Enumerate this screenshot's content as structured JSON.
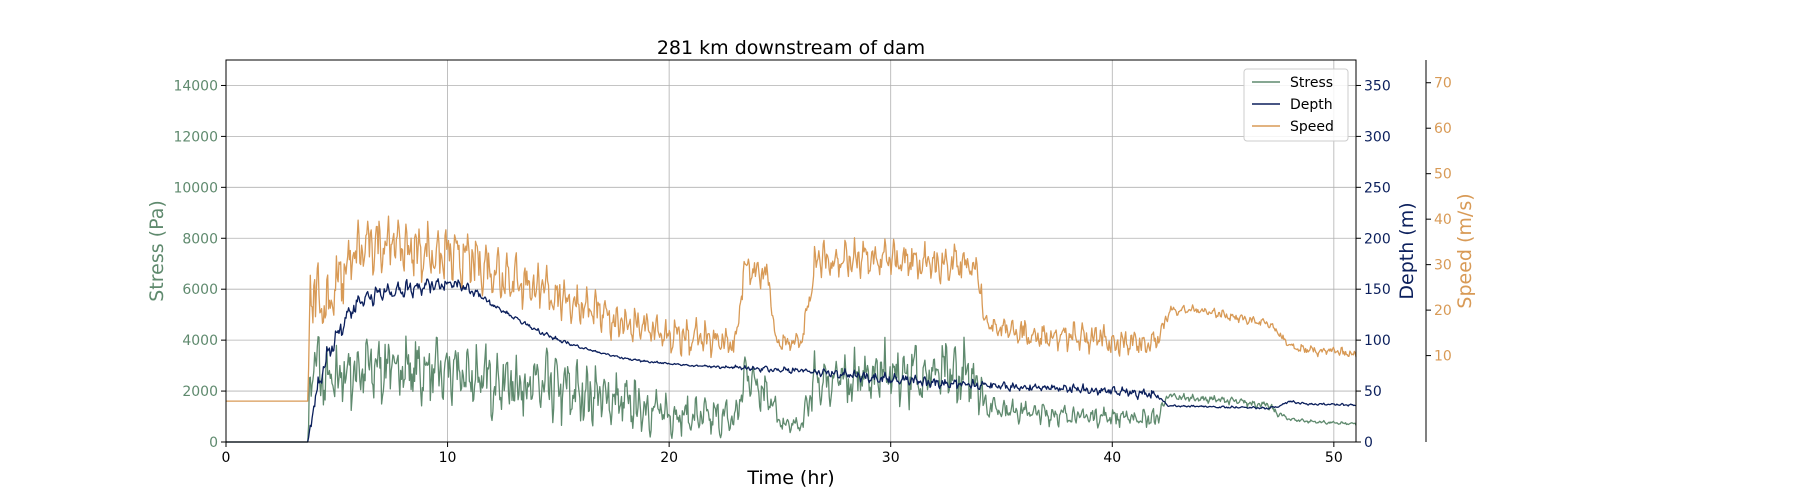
{
  "chart_data": {
    "type": "line",
    "title": "281 km downstream of dam",
    "xlabel": "Time (hr)",
    "xlim": [
      0,
      51
    ],
    "xticks": [
      0,
      10,
      20,
      30,
      40,
      50
    ],
    "grid": true,
    "legend": {
      "placement": "top-right"
    },
    "axes": {
      "stress": {
        "label": "Stress (Pa)",
        "ylim": [
          0,
          15000
        ],
        "ticks": [
          0,
          2000,
          4000,
          6000,
          8000,
          10000,
          12000,
          14000
        ],
        "color": "#5f8a6e"
      },
      "depth": {
        "label": "Depth (m)",
        "ylim": [
          0,
          375
        ],
        "ticks": [
          0,
          50,
          100,
          150,
          200,
          250,
          300,
          350
        ],
        "color": "#0b1f5c"
      },
      "speed": {
        "label": "Speed (m/s)",
        "ylim": [
          -9,
          75
        ],
        "ticks": [
          10,
          20,
          30,
          40,
          50,
          60,
          70
        ],
        "color": "#d89a56"
      }
    },
    "series": [
      {
        "name": "Stress",
        "axis": "stress",
        "color": "#5f8a6e",
        "x": [
          0,
          3.7,
          3.8,
          4.0,
          4.3,
          4.6,
          5.0,
          5.5,
          6.0,
          6.5,
          7.0,
          7.5,
          8.0,
          8.5,
          9.0,
          9.5,
          10.0,
          11.0,
          12.0,
          13.0,
          14.0,
          15.0,
          16.0,
          17.0,
          18.0,
          19.0,
          20.0,
          21.0,
          22.0,
          23.0,
          23.5,
          24.0,
          24.5,
          25.0,
          26.0,
          26.5,
          27.0,
          28.0,
          29.0,
          30.0,
          31.0,
          32.0,
          33.0,
          34.0,
          34.2,
          35.0,
          36.0,
          37.0,
          38.0,
          39.0,
          40.0,
          41.0,
          42.0,
          42.5,
          43.0,
          44.0,
          45.0,
          46.0,
          47.0,
          47.5,
          48.0,
          49.0,
          50.0,
          51.0
        ],
        "y": [
          0,
          0,
          2500,
          3200,
          2600,
          2200,
          2500,
          2700,
          2800,
          2900,
          2900,
          3000,
          2900,
          2800,
          2800,
          2700,
          2700,
          2600,
          2400,
          2300,
          2200,
          2100,
          1900,
          1800,
          1500,
          1300,
          1100,
          1000,
          950,
          900,
          2800,
          2300,
          1900,
          700,
          650,
          2300,
          2400,
          2500,
          2600,
          2650,
          2700,
          2700,
          2600,
          2500,
          1500,
          1300,
          1200,
          1100,
          1050,
          1000,
          1000,
          950,
          900,
          1800,
          1750,
          1700,
          1650,
          1550,
          1450,
          1100,
          900,
          800,
          750,
          700
        ],
        "amp": [
          0,
          0,
          1200,
          1200,
          1500,
          1500,
          1400,
          1400,
          1400,
          1300,
          1300,
          1300,
          1300,
          1300,
          1300,
          1300,
          1300,
          1300,
          1300,
          1300,
          1300,
          1300,
          1200,
          1100,
          1000,
          900,
          800,
          700,
          700,
          700,
          1200,
          1000,
          800,
          300,
          300,
          1000,
          1000,
          1100,
          1200,
          1200,
          1200,
          1200,
          1200,
          1200,
          500,
          400,
          400,
          400,
          350,
          350,
          350,
          350,
          350,
          150,
          150,
          150,
          150,
          150,
          150,
          100,
          80,
          60,
          60,
          60
        ]
      },
      {
        "name": "Depth",
        "axis": "depth",
        "color": "#0b1f5c",
        "x": [
          0,
          3.7,
          4.0,
          4.5,
          5.0,
          5.5,
          6.0,
          6.5,
          7.0,
          7.5,
          8.0,
          8.5,
          9.0,
          9.5,
          10.0,
          10.5,
          11.0,
          11.5,
          12.0,
          13.0,
          14.0,
          15.0,
          16.0,
          17.0,
          18.0,
          19.0,
          20.0,
          21.0,
          22.0,
          23.0,
          24.0,
          25.0,
          26.0,
          27.0,
          28.0,
          29.0,
          30.0,
          31.0,
          32.0,
          33.0,
          34.0,
          35.0,
          36.0,
          37.0,
          38.0,
          39.0,
          40.0,
          41.0,
          42.0,
          42.5,
          43.0,
          44.0,
          45.0,
          46.0,
          47.0,
          47.5,
          48.0,
          48.5,
          49.0,
          50.0,
          51.0
        ],
        "y": [
          0,
          0,
          40,
          80,
          105,
          125,
          138,
          143,
          146,
          148,
          150,
          152,
          154,
          155,
          155,
          154,
          150,
          143,
          135,
          122,
          110,
          100,
          93,
          87,
          82,
          79,
          77,
          75,
          74,
          73,
          72,
          71,
          70,
          68,
          66,
          64,
          62,
          60,
          58,
          57,
          56,
          55,
          54,
          53,
          52,
          51,
          50,
          48,
          46,
          36,
          35,
          35,
          34,
          34,
          33,
          35,
          40,
          38,
          37,
          37,
          36
        ],
        "amp": [
          0,
          0,
          10,
          10,
          10,
          9,
          8,
          8,
          8,
          8,
          8,
          8,
          8,
          8,
          7,
          6,
          5,
          4,
          3,
          2,
          2,
          2,
          1,
          1,
          1,
          1,
          1,
          1,
          1,
          2,
          3,
          3,
          3,
          4,
          5,
          5,
          5,
          5,
          5,
          5,
          5,
          4,
          4,
          4,
          4,
          5,
          5,
          5,
          5,
          1,
          1,
          1,
          1,
          1,
          1,
          1,
          1,
          1,
          1,
          1,
          1
        ]
      },
      {
        "name": "Speed",
        "axis": "speed",
        "color": "#d89a56",
        "x": [
          0,
          3.7,
          3.8,
          4.0,
          4.5,
          5.0,
          5.5,
          6.0,
          6.5,
          7.0,
          7.5,
          8.0,
          8.5,
          9.0,
          9.5,
          10.0,
          11.0,
          12.0,
          13.0,
          14.0,
          15.0,
          16.0,
          17.0,
          18.0,
          19.0,
          20.0,
          21.0,
          22.0,
          23.0,
          23.4,
          23.6,
          24.0,
          24.5,
          24.8,
          25.0,
          26.0,
          26.6,
          27.0,
          28.0,
          29.0,
          30.0,
          31.0,
          32.0,
          33.0,
          34.0,
          34.2,
          35.0,
          36.0,
          37.0,
          38.0,
          39.0,
          40.0,
          41.0,
          42.0,
          42.6,
          43.0,
          44.0,
          45.0,
          46.0,
          47.0,
          47.5,
          48.0,
          49.0,
          50.0,
          51.0
        ],
        "y": [
          0,
          0,
          22,
          24,
          21,
          25,
          30,
          33,
          34,
          35,
          35,
          34,
          33,
          33,
          32,
          32,
          31,
          29,
          27,
          25,
          23,
          21,
          19,
          17,
          16,
          14,
          14,
          13,
          13,
          29,
          29,
          28,
          27,
          13,
          13,
          13,
          31,
          31,
          31,
          31,
          31,
          31,
          30,
          30,
          29,
          18,
          16,
          15,
          14,
          14,
          14,
          13,
          13,
          13,
          20,
          20,
          20,
          19,
          18,
          17,
          15,
          12,
          11,
          11,
          10
        ],
        "amp": [
          0,
          0,
          8,
          8,
          7,
          7,
          6,
          6,
          6,
          6,
          6,
          6,
          6,
          6,
          6,
          6,
          6,
          6,
          6,
          5,
          5,
          4,
          4,
          4,
          4,
          4,
          4,
          3,
          3,
          3,
          3,
          3,
          3,
          2,
          2,
          2,
          4,
          4,
          4,
          4,
          4,
          4,
          4,
          4,
          4,
          3,
          3,
          3,
          3,
          3,
          3,
          3,
          3,
          3,
          1,
          1,
          1,
          1,
          1,
          1,
          1,
          1,
          1,
          1,
          1
        ]
      }
    ]
  }
}
